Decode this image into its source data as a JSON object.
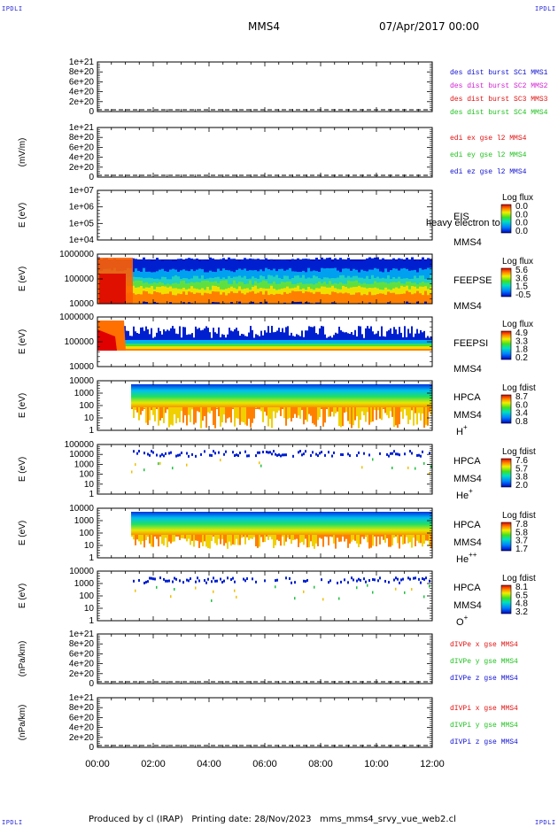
{
  "corner_tag": "IPDLI",
  "header": {
    "spacecraft": "MMS4",
    "datetime": "07/Apr/2017 00:00"
  },
  "footer": "Produced by cl (IRAP)   Printing date: 28/Nov/2023   mms_mms4_srvy_vue_web2.cl",
  "time_axis": {
    "ticks": [
      "00:00",
      "02:00",
      "04:00",
      "06:00",
      "08:00",
      "10:00",
      "12:00"
    ]
  },
  "colors": {
    "blue": "#1010d0",
    "magenta": "#d020d0",
    "red": "#e01010",
    "green": "#20c020"
  },
  "chart_data": [
    {
      "type": "line",
      "ylabel": "",
      "yticks": [
        "1e+21",
        "8e+20",
        "6e+20",
        "4e+20",
        "2e+20",
        "0"
      ],
      "legend": [
        {
          "text": "des dist burst SC1 MMS1",
          "color": "blue"
        },
        {
          "text": "des dist burst SC2 MMS2",
          "color": "magenta"
        },
        {
          "text": "des dist burst SC3 MMS3",
          "color": "red"
        },
        {
          "text": "des dist burst SC4 MMS4",
          "color": "green"
        }
      ]
    },
    {
      "type": "line",
      "ylabel": "(mV/m)",
      "yticks": [
        "1e+21",
        "8e+20",
        "6e+20",
        "4e+20",
        "2e+20",
        "0"
      ],
      "legend": [
        {
          "text": "edi ex gse l2 MMS4",
          "color": "red"
        },
        {
          "text": "edi ey gse l2 MMS4",
          "color": "green"
        },
        {
          "text": "edi ez gse l2 MMS4",
          "color": "blue"
        }
      ]
    },
    {
      "type": "heatmap",
      "ylabel": "E (eV)",
      "yticks": [
        "1e+07",
        "1e+06",
        "1e+05",
        "1e+04"
      ],
      "instrument": [
        "EIS"
      ],
      "overlay": "heavy electron to",
      "probe": "MMS4",
      "species": "",
      "cbar_title": "Log flux",
      "cbar_ticks": [
        "0.0",
        "0.0",
        "0.0",
        "0.0"
      ]
    },
    {
      "type": "heatmap",
      "ylabel": "E (eV)",
      "yticks": [
        "1000000",
        "100000",
        "10000"
      ],
      "instrument": [
        "FEEPSE"
      ],
      "probe": "MMS4",
      "species": "",
      "cbar_title": "Log flux",
      "cbar_ticks": [
        "5.6",
        "3.6",
        "1.5",
        "-0.5"
      ]
    },
    {
      "type": "heatmap",
      "ylabel": "E (eV)",
      "yticks": [
        "1000000",
        "100000",
        "10000"
      ],
      "instrument": [
        "FEEPSI"
      ],
      "probe": "MMS4",
      "species": "",
      "cbar_title": "Log flux",
      "cbar_ticks": [
        "4.9",
        "3.3",
        "1.8",
        "0.2"
      ]
    },
    {
      "type": "heatmap",
      "ylabel": "E (eV)",
      "yticks": [
        "10000",
        "1000",
        "100",
        "10",
        "1"
      ],
      "instrument": [
        "HPCA"
      ],
      "probe": "MMS4",
      "species": "H",
      "charge": "+",
      "cbar_title": "Log fdist",
      "cbar_ticks": [
        "8.7",
        "6.0",
        "3.4",
        "0.8"
      ]
    },
    {
      "type": "heatmap",
      "ylabel": "E (eV)",
      "yticks": [
        "100000",
        "10000",
        "1000",
        "100",
        "10",
        "1"
      ],
      "instrument": [
        "HPCA"
      ],
      "probe": "MMS4",
      "species": "He",
      "charge": "+",
      "cbar_title": "Log fdist",
      "cbar_ticks": [
        "7.6",
        "5.7",
        "3.8",
        "2.0"
      ]
    },
    {
      "type": "heatmap",
      "ylabel": "E (eV)",
      "yticks": [
        "10000",
        "1000",
        "100",
        "10",
        "1"
      ],
      "instrument": [
        "HPCA"
      ],
      "probe": "MMS4",
      "species": "He",
      "charge": "++",
      "cbar_title": "Log fdist",
      "cbar_ticks": [
        "7.8",
        "5.8",
        "3.7",
        "1.7"
      ]
    },
    {
      "type": "heatmap",
      "ylabel": "E (eV)",
      "yticks": [
        "10000",
        "1000",
        "100",
        "10",
        "1"
      ],
      "instrument": [
        "HPCA"
      ],
      "probe": "MMS4",
      "species": "O",
      "charge": "+",
      "cbar_title": "Log fdist",
      "cbar_ticks": [
        "8.1",
        "6.5",
        "4.8",
        "3.2"
      ]
    },
    {
      "type": "line",
      "ylabel": "(nPa/km)",
      "yticks": [
        "1e+21",
        "8e+20",
        "6e+20",
        "4e+20",
        "2e+20",
        "0"
      ],
      "legend": [
        {
          "text": "dIVPe x gse MMS4",
          "color": "red"
        },
        {
          "text": "dIVPe y gse MMS4",
          "color": "green"
        },
        {
          "text": "dIVPe z gse MMS4",
          "color": "blue"
        }
      ]
    },
    {
      "type": "line",
      "ylabel": "(nPa/km)",
      "yticks": [
        "1e+21",
        "8e+20",
        "6e+20",
        "4e+20",
        "2e+20",
        "0"
      ],
      "legend": [
        {
          "text": "dIVPi x gse MMS4",
          "color": "red"
        },
        {
          "text": "dIVPi y gse MMS4",
          "color": "green"
        },
        {
          "text": "dIVPi z gse MMS4",
          "color": "blue"
        }
      ]
    }
  ]
}
